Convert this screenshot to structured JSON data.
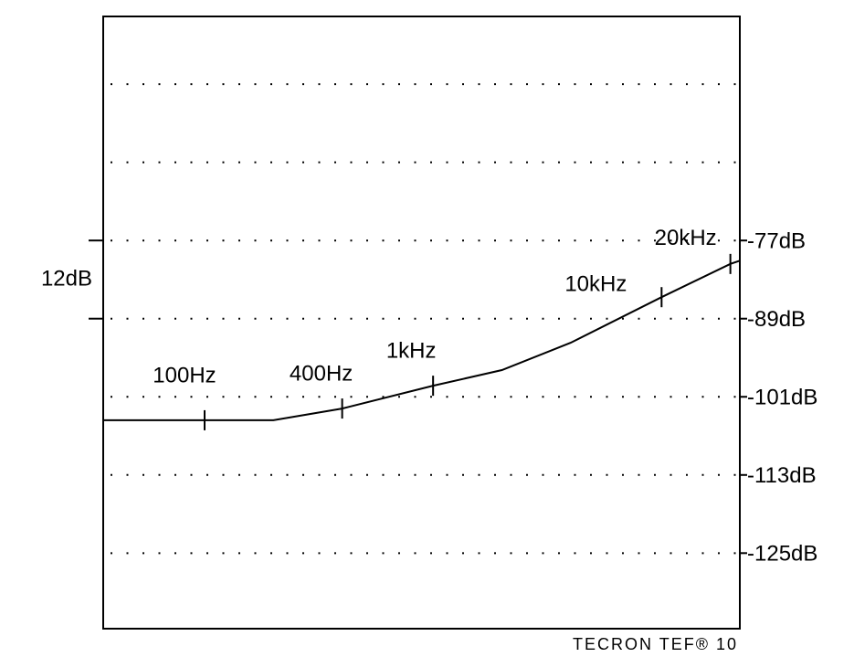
{
  "chart_data": {
    "type": "line",
    "xscale": "log",
    "xlim": [
      36,
      22000
    ],
    "ylim": [
      -136.6,
      -42.6
    ],
    "yticks": [
      {
        "value": -77,
        "label": "-77dB"
      },
      {
        "value": -89,
        "label": "-89dB"
      },
      {
        "value": -101,
        "label": "-101dB"
      },
      {
        "value": -113,
        "label": "-113dB"
      },
      {
        "value": -125,
        "label": "-125dB"
      }
    ],
    "ygrid": [
      -53,
      -65,
      -77,
      -89,
      -101,
      -113,
      -125
    ],
    "scale_label": "12dB",
    "x": [
      36,
      100,
      200,
      400,
      1000,
      2000,
      4000,
      10000,
      20000,
      22000
    ],
    "values": [
      -104.6,
      -104.6,
      -104.6,
      -102.8,
      -99.3,
      -96.9,
      -92.7,
      -85.7,
      -80.6,
      -80.1
    ],
    "color": "#000000",
    "markers": [
      {
        "label": "100Hz",
        "x": 100,
        "value": -104.6
      },
      {
        "label": "400Hz",
        "x": 400,
        "value": -102.8
      },
      {
        "label": "1kHz",
        "x": 1000,
        "value": -99.3
      },
      {
        "label": "10kHz",
        "x": 10000,
        "value": -85.7
      },
      {
        "label": "20kHz",
        "x": 20000,
        "value": -80.6
      }
    ],
    "footer": "TECRON TEF® 10"
  }
}
